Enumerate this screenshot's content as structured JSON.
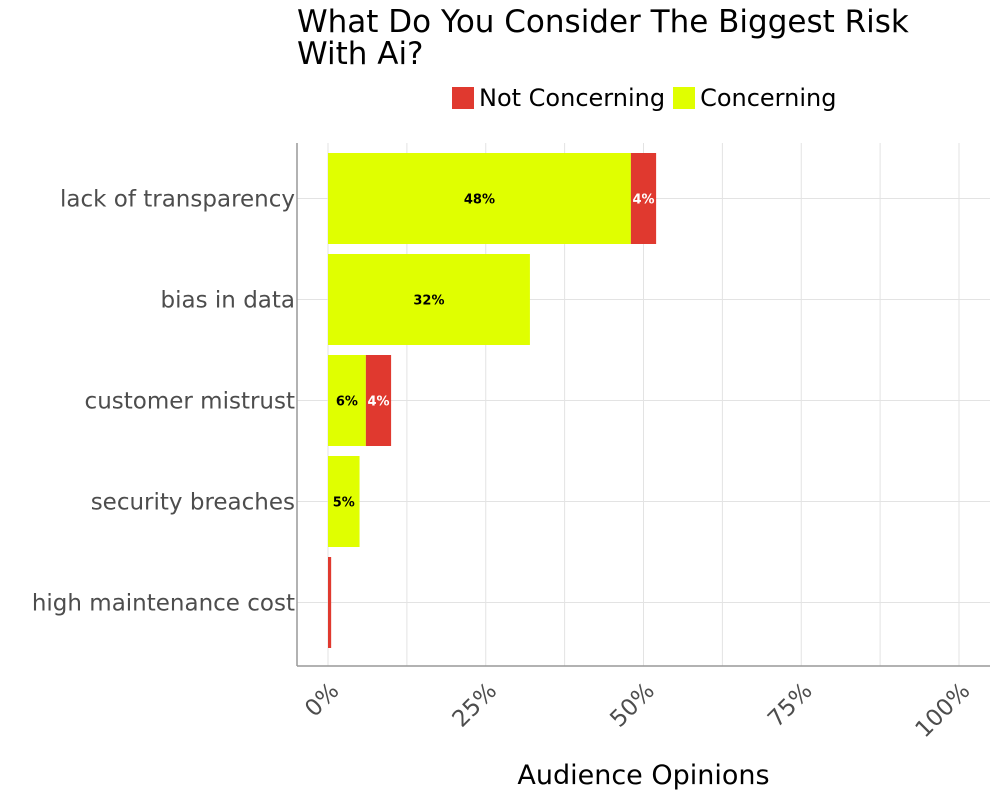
{
  "chart_data": {
    "type": "bar",
    "orientation": "horizontal",
    "stacked": true,
    "title": "What Do You Consider The Biggest Risk With Ai?",
    "xlabel": "Audience Opinions",
    "ylabel": "",
    "xlim": [
      0,
      100
    ],
    "x_ticks": [
      "0%",
      "25%",
      "50%",
      "75%",
      "100%"
    ],
    "categories": [
      "lack of transparency",
      "bias in data",
      "customer mistrust",
      "security breaches",
      "high maintenance cost"
    ],
    "series": [
      {
        "name": "Concerning",
        "color": "#e0ff00",
        "label_color": "#000000",
        "values": [
          48,
          32,
          6,
          5,
          0
        ],
        "labels": [
          "48%",
          "32%",
          "6%",
          "5%",
          ""
        ]
      },
      {
        "name": "Not Concerning",
        "color": "#e0392f",
        "label_color": "#ffffff",
        "values": [
          4,
          0,
          4,
          0,
          0.5
        ],
        "labels": [
          "4%",
          "",
          "4%",
          "",
          ""
        ]
      }
    ],
    "legend": {
      "position": "top",
      "entries": [
        {
          "name": "Not Concerning",
          "color": "#e0392f"
        },
        {
          "name": "Concerning",
          "color": "#e0ff00"
        }
      ]
    },
    "grid": true
  }
}
